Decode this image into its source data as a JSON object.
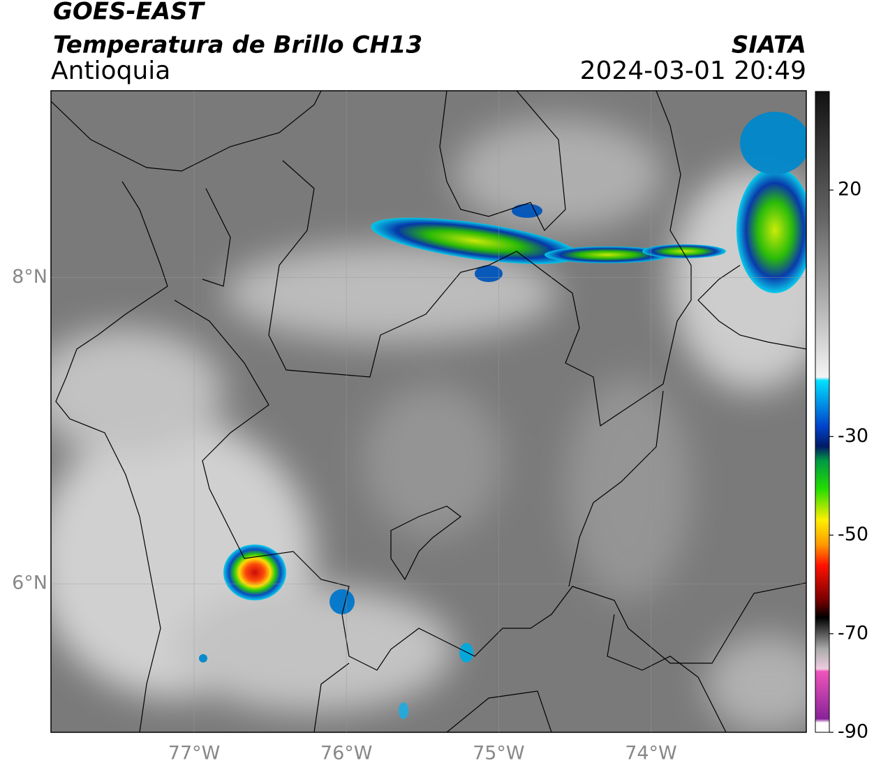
{
  "header": {
    "title": "GOES-EAST",
    "subtitle": "Temperatura de Brillo CH13",
    "region": "Antioquia",
    "source": "SIATA",
    "datetime": "2024-03-01 20:49"
  },
  "map": {
    "xlim": [
      -77.94,
      -72.98
    ],
    "ylim": [
      5.03,
      9.22
    ],
    "grid": true,
    "xticks": [
      {
        "value": -77,
        "label": "77°W"
      },
      {
        "value": -76,
        "label": "76°W"
      },
      {
        "value": -75,
        "label": "75°W"
      },
      {
        "value": -74,
        "label": "74°W"
      }
    ],
    "yticks": [
      {
        "value": 8,
        "label": "8°N"
      },
      {
        "value": 6,
        "label": "6°N"
      }
    ]
  },
  "colorbar": {
    "lim": [
      -90,
      40
    ],
    "ticks": [
      20,
      -30,
      -50,
      -70,
      -90
    ]
  }
}
